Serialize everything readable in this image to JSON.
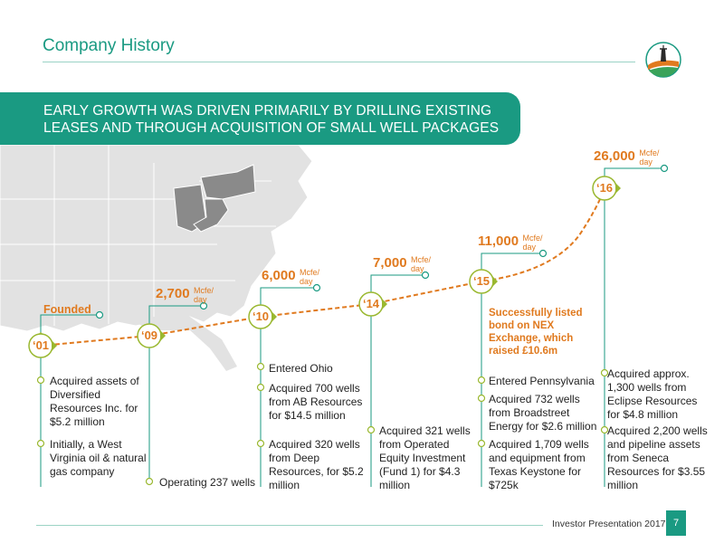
{
  "header": {
    "title": "Company History",
    "logo_icon": "company-logo-icon"
  },
  "banner": {
    "line1": "EARLY GROWTH WAS DRIVEN PRIMARILY BY DRILLING EXISTING",
    "line2": "LEASES AND THROUGH ACQUISITION OF SMALL WELL PACKAGES"
  },
  "colors": {
    "brand_teal": "#1a9a82",
    "accent_orange": "#e07a1f",
    "map_gray": "#e2e2e2",
    "highlight_gray": "#8a8a8a"
  },
  "timeline": {
    "founded_label": "Founded",
    "listed_note": "Successfully listed bond on NEX Exchange, which raised £10.6m",
    "milestones": [
      {
        "year": "‘01"
      },
      {
        "year": "‘09",
        "production": "2,700",
        "unit_line1": "Mcfe/",
        "unit_line2": "day"
      },
      {
        "year": "‘10",
        "production": "6,000",
        "unit_line1": "Mcfe/",
        "unit_line2": "day"
      },
      {
        "year": "‘14",
        "production": "7,000",
        "unit_line1": "Mcfe/",
        "unit_line2": "day"
      },
      {
        "year": "‘15",
        "production": "11,000",
        "unit_line1": "Mcfe/",
        "unit_line2": "day"
      },
      {
        "year": "‘16",
        "production": "26,000",
        "unit_line1": "Mcfe/",
        "unit_line2": "day"
      }
    ],
    "events": {
      "y2001": [
        "Acquired assets of Diversified Resources Inc. for $5.2 million",
        "Initially, a West Virginia oil & natural gas company"
      ],
      "y2009": [
        "Operating 237 wells"
      ],
      "y2010": [
        "Entered Ohio",
        "Acquired 700 wells from AB Resources for $14.5 million",
        "Acquired 320 wells from Deep Resources, for $5.2 million"
      ],
      "y2014": [
        "Acquired 321 wells from Operated Equity Investment (Fund 1) for $4.3 million"
      ],
      "y2015": [
        "Entered Pennsylvania",
        "Acquired 732 wells from Broadstreet Energy for $2.6 million",
        "Acquired 1,709 wells and equipment from Texas Keystone for $725k"
      ],
      "y2016": [
        "Acquired approx. 1,300 wells from Eclipse Resources for $4.8 million",
        "Acquired 2,200 wells and pipeline assets from Seneca Resources for $3.55 million"
      ]
    }
  },
  "footer": {
    "label": "Investor Presentation 2017",
    "page": "7"
  }
}
